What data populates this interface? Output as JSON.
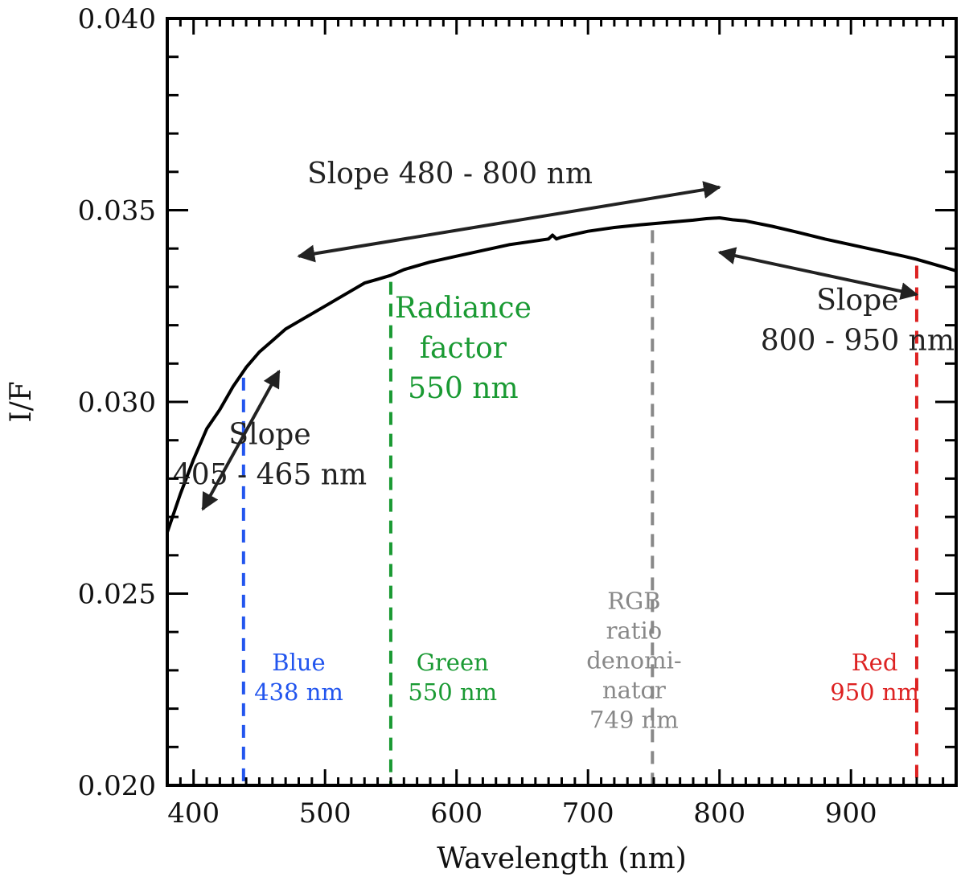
{
  "chart_data": {
    "type": "line",
    "xlabel": "Wavelength (nm)",
    "ylabel": "I/F",
    "xlim": [
      380,
      980
    ],
    "ylim": [
      0.02,
      0.04
    ],
    "x_ticks": [
      400,
      500,
      600,
      700,
      800,
      900
    ],
    "y_ticks": [
      0.02,
      0.025,
      0.03,
      0.035,
      0.04
    ],
    "y_tick_labels": [
      "0.020",
      "0.025",
      "0.030",
      "0.035",
      "0.040"
    ],
    "grid": false,
    "series": [
      {
        "color": "#000000",
        "x": [
          380,
          390,
          400,
          410,
          420,
          430,
          440,
          450,
          460,
          470,
          480,
          490,
          500,
          510,
          520,
          530,
          540,
          550,
          560,
          580,
          600,
          620,
          640,
          660,
          670,
          673,
          676,
          680,
          700,
          720,
          740,
          760,
          780,
          790,
          800,
          810,
          820,
          840,
          860,
          880,
          900,
          920,
          940,
          950,
          960,
          970,
          980
        ],
        "y": [
          0.0266,
          0.0276,
          0.0285,
          0.0293,
          0.0298,
          0.0304,
          0.0309,
          0.0313,
          0.0316,
          0.0319,
          0.0321,
          0.0323,
          0.0325,
          0.0327,
          0.0329,
          0.0331,
          0.0332,
          0.0333,
          0.03345,
          0.03365,
          0.0338,
          0.03395,
          0.0341,
          0.0342,
          0.03425,
          0.03435,
          0.03425,
          0.0343,
          0.03445,
          0.03455,
          0.03462,
          0.03468,
          0.03474,
          0.03478,
          0.0348,
          0.03475,
          0.03472,
          0.03458,
          0.03442,
          0.03425,
          0.0341,
          0.03395,
          0.0338,
          0.03372,
          0.03362,
          0.03352,
          0.03342
        ]
      }
    ],
    "vlines": [
      {
        "x": 438,
        "color": "#2255ee",
        "label_lines": [
          "Blue",
          "438 nm"
        ],
        "label_x": 480,
        "label_y": 0.023
      },
      {
        "x": 550,
        "color": "#1a9a33",
        "label_lines": [
          "Green",
          "550 nm"
        ],
        "label_x": 597,
        "label_y": 0.023
      },
      {
        "x": 749,
        "color": "#888888",
        "label_lines": [
          "RGB",
          "ratio",
          "denomi-",
          "nator",
          "749 nm"
        ],
        "label_x": 735,
        "label_y": 0.0246
      },
      {
        "x": 950,
        "color": "#dd2222",
        "label_lines": [
          "Red",
          "950 nm"
        ],
        "label_x": 918,
        "label_y": 0.023
      }
    ],
    "annotations": [
      {
        "lines": [
          "Slope 480 - 800 nm"
        ],
        "x": 595,
        "y": 0.0357,
        "color": "#222222",
        "size": "big"
      },
      {
        "lines": [
          "Slope",
          "800 - 950 nm"
        ],
        "x": 905,
        "y": 0.0324,
        "color": "#222222",
        "size": "big"
      },
      {
        "lines": [
          "Radiance",
          "factor",
          "550 nm"
        ],
        "x": 605,
        "y": 0.0322,
        "color": "#1a9a33",
        "size": "big"
      },
      {
        "lines": [
          "Slope",
          "405 - 465 nm"
        ],
        "x": 458,
        "y": 0.0289,
        "color": "#222222",
        "size": "big"
      }
    ],
    "arrows": [
      {
        "from": [
          480,
          0.0338
        ],
        "to": [
          800,
          0.0356
        ],
        "heads": "both",
        "color": "#222222"
      },
      {
        "from": [
          800,
          0.0339
        ],
        "to": [
          950,
          0.0328
        ],
        "heads": "both",
        "color": "#222222"
      },
      {
        "from": [
          407,
          0.0272
        ],
        "to": [
          465,
          0.0308
        ],
        "heads": "both",
        "color": "#222222"
      }
    ]
  }
}
